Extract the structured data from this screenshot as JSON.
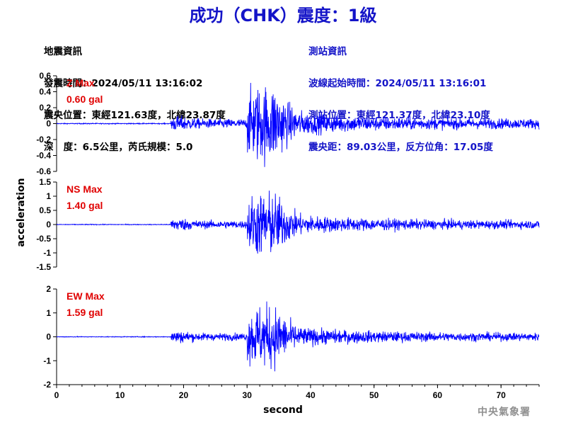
{
  "title": "成功（CHK）震度：1級",
  "quake_info": {
    "heading": "地震資訊",
    "origin_time": "發震時間：2024/05/11 13:16:02",
    "epicenter": "震央位置：東經121.63度，北緯23.87度",
    "depth_mag": "深   度：6.5公里，芮氏規模：5.0"
  },
  "station_info": {
    "heading": "測站資訊",
    "arrival_time": "波線起始時間：2024/05/11 13:16:01",
    "location": "測站位置：東經121.37度，北緯23.10度",
    "distance": "震央距：89.03公里，反方位角：17.05度"
  },
  "agency": "中央氣象署",
  "colors": {
    "trace": "#0000ff",
    "label": "#e00000",
    "title": "#1414c8"
  },
  "chart_data": [
    {
      "type": "line",
      "component": "Z",
      "max_label": "Z Max",
      "max_value": "0.60 gal",
      "ylim": [
        -0.6,
        0.6
      ],
      "yticks": [
        "0.6",
        "0.4",
        "0.2",
        "0",
        "-0.2",
        "-0.4",
        "-0.6"
      ],
      "xlim": [
        0,
        76
      ],
      "peak": 0.6,
      "p_arrival": 18,
      "s_arrival": 30
    },
    {
      "type": "line",
      "component": "NS",
      "max_label": "NS Max",
      "max_value": "1.40 gal",
      "ylim": [
        -1.5,
        1.5
      ],
      "yticks": [
        "1.5",
        "1",
        "0.5",
        "0",
        "-0.5",
        "-1",
        "-1.5"
      ],
      "xlim": [
        0,
        76
      ],
      "peak": 1.4,
      "p_arrival": 18,
      "s_arrival": 30
    },
    {
      "type": "line",
      "component": "EW",
      "max_label": "EW Max",
      "max_value": "1.59 gal",
      "ylim": [
        -2,
        2
      ],
      "yticks": [
        "2",
        "1",
        "0",
        "-1",
        "-2"
      ],
      "xlim": [
        0,
        76
      ],
      "peak": 1.59,
      "p_arrival": 18,
      "s_arrival": 30
    }
  ],
  "axes": {
    "xlabel": "second",
    "ylabel": "acceleration",
    "xticks": [
      "0",
      "10",
      "20",
      "30",
      "40",
      "50",
      "60",
      "70"
    ]
  }
}
